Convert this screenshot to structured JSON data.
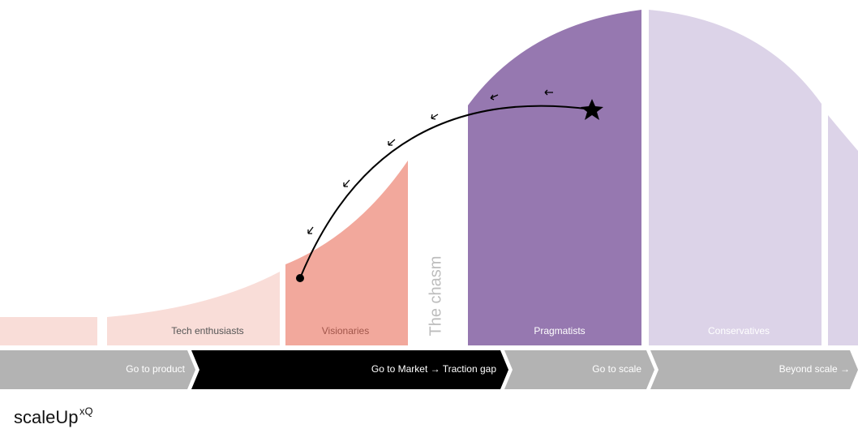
{
  "segments": [
    {
      "label": "Tech enthusiasts"
    },
    {
      "label": "Visionaries"
    },
    {
      "label": "Pragmatists"
    },
    {
      "label": "Conservatives"
    }
  ],
  "chasm": "The chasm",
  "stages": [
    "Go to product",
    "Go to Market → Traction gap",
    "Go to scale",
    "Beyond scale →"
  ],
  "logo": {
    "name": "scaleUp",
    "mark": "xQ"
  }
}
